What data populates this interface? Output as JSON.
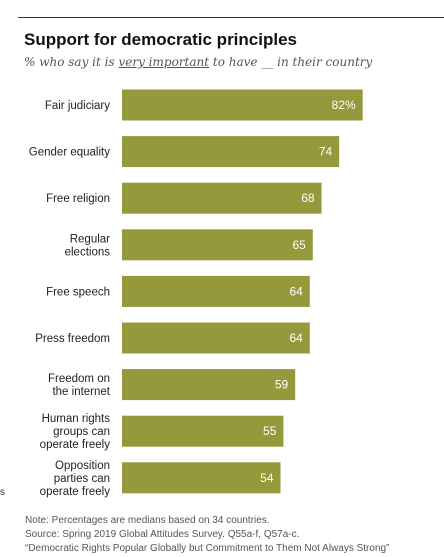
{
  "title": "Support for democratic principles",
  "subtitle": {
    "pre": "% who say it is ",
    "underlined": "very important",
    "post": " to have __ in their country"
  },
  "chart_data": {
    "type": "bar",
    "orientation": "horizontal",
    "categories": [
      [
        "Fair judiciary"
      ],
      [
        "Gender equality"
      ],
      [
        "Free religion"
      ],
      [
        "Regular",
        "elections"
      ],
      [
        "Free speech"
      ],
      [
        "Press freedom"
      ],
      [
        "Freedom on",
        "the internet"
      ],
      [
        "Human rights",
        "groups can",
        "operate freely"
      ],
      [
        "Opposition",
        "parties can",
        "operate freely"
      ]
    ],
    "values": [
      82,
      74,
      68,
      65,
      64,
      64,
      59,
      55,
      54
    ],
    "value_labels": [
      "82%",
      "74",
      "68",
      "65",
      "64",
      "64",
      "59",
      "55",
      "54"
    ],
    "xlim": [
      0,
      100
    ],
    "bar_color": "#949a3b",
    "label_color": "#ffffff"
  },
  "notes": [
    "Note: Percentages are medians based on 34 countries.",
    "Source: Spring 2019 Global Attitudes Survey. Q55a-f, Q57a-c.",
    "“Democratic Rights Popular Globally but Commitment to Them Not Always Strong”"
  ]
}
